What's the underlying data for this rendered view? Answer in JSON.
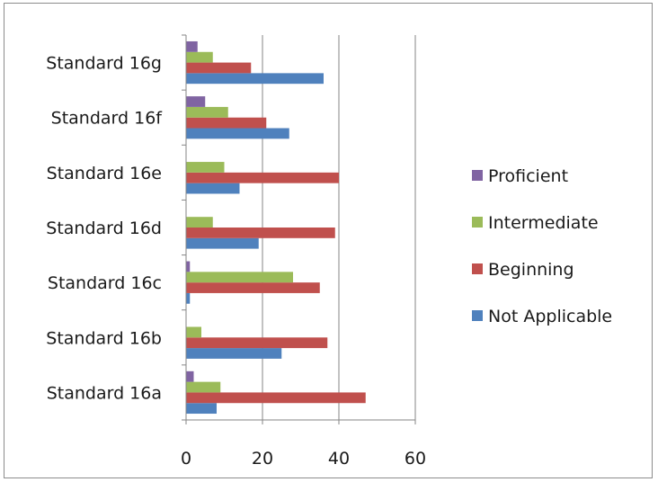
{
  "chart_data": {
    "type": "bar",
    "orientation": "horizontal",
    "categories": [
      "Standard 16a",
      "Standard 16b",
      "Standard 16c",
      "Standard 16d",
      "Standard 16e",
      "Standard 16f",
      "Standard 16g"
    ],
    "series": [
      {
        "name": "Not Applicable",
        "color": "#4f81bd",
        "values": [
          8,
          25,
          1,
          19,
          14,
          27,
          36
        ]
      },
      {
        "name": "Beginning",
        "color": "#c0504d",
        "values": [
          47,
          37,
          35,
          39,
          40,
          21,
          17
        ]
      },
      {
        "name": "Intermediate",
        "color": "#9bbb59",
        "values": [
          9,
          4,
          28,
          7,
          10,
          11,
          7
        ]
      },
      {
        "name": "Proficient",
        "color": "#8064a2",
        "values": [
          2,
          0,
          1,
          0,
          0,
          5,
          3
        ]
      }
    ],
    "xlim": [
      0,
      60
    ],
    "xticks": [
      0,
      20,
      40,
      60
    ],
    "grid": true,
    "legend_position": "right",
    "legend_order": [
      "Proficient",
      "Intermediate",
      "Beginning",
      "Not Applicable"
    ]
  }
}
